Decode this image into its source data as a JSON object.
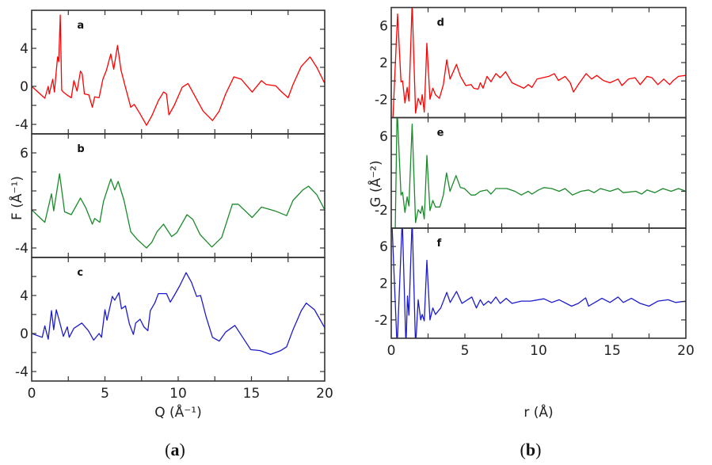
{
  "figure": {
    "left": {
      "ylabel": "F (Å⁻¹)",
      "xlabel": "Q (Å⁻¹)",
      "caption_open": "(",
      "caption_letter": "a",
      "caption_close": ")"
    },
    "right": {
      "ylabel": "G (Å⁻²)",
      "xlabel": "r (Å)",
      "caption_open": "(",
      "caption_letter": "b",
      "caption_close": ")"
    }
  },
  "chart_data": [
    {
      "type": "line",
      "panel": "a",
      "color": "#ff0000",
      "xlim": [
        0,
        20
      ],
      "ylim": [
        -5,
        8
      ],
      "yticklabels": [
        4,
        0,
        -4
      ],
      "xticks": [
        0,
        5,
        10,
        15,
        20
      ],
      "show_xticklabels": false,
      "points": [
        [
          0,
          0
        ],
        [
          0.9,
          -1.25
        ],
        [
          1.13,
          0
        ],
        [
          1.2,
          -0.8
        ],
        [
          1.44,
          0.75
        ],
        [
          1.55,
          -0.6
        ],
        [
          1.77,
          3.1
        ],
        [
          1.85,
          2.6
        ],
        [
          1.95,
          7.5
        ],
        [
          2.05,
          -0.4
        ],
        [
          2.16,
          -0.6
        ],
        [
          2.4,
          -0.9
        ],
        [
          2.7,
          -1.2
        ],
        [
          2.88,
          0.6
        ],
        [
          3.1,
          -0.5
        ],
        [
          3.33,
          1.6
        ],
        [
          3.45,
          1.3
        ],
        [
          3.6,
          -0.8
        ],
        [
          3.9,
          -0.9
        ],
        [
          4.14,
          -2.2
        ],
        [
          4.3,
          -1.1
        ],
        [
          4.6,
          -1.2
        ],
        [
          4.86,
          0.75
        ],
        [
          5.1,
          1.7
        ],
        [
          5.4,
          3.4
        ],
        [
          5.6,
          1.8
        ],
        [
          5.86,
          4.3
        ],
        [
          6.1,
          1.7
        ],
        [
          6.4,
          -0.1
        ],
        [
          6.76,
          -2.2
        ],
        [
          7.0,
          -1.9
        ],
        [
          7.4,
          -2.9
        ],
        [
          7.84,
          -4.1
        ],
        [
          8.2,
          -3.1
        ],
        [
          8.65,
          -1.5
        ],
        [
          9.0,
          -0.6
        ],
        [
          9.2,
          -0.8
        ],
        [
          9.37,
          -3.0
        ],
        [
          9.73,
          -2.0
        ],
        [
          10.27,
          -0.1
        ],
        [
          10.67,
          0.3
        ],
        [
          11.17,
          -1.1
        ],
        [
          11.7,
          -2.6
        ],
        [
          12.34,
          -3.6
        ],
        [
          12.8,
          -2.6
        ],
        [
          13.24,
          -0.8
        ],
        [
          13.8,
          1.0
        ],
        [
          14.3,
          0.75
        ],
        [
          15.05,
          -0.6
        ],
        [
          15.68,
          0.6
        ],
        [
          16.0,
          0.2
        ],
        [
          16.67,
          0.05
        ],
        [
          17.0,
          -0.5
        ],
        [
          17.5,
          -1.2
        ],
        [
          17.84,
          0.2
        ],
        [
          18.4,
          2.1
        ],
        [
          19.0,
          3.1
        ],
        [
          19.46,
          2.0
        ],
        [
          20,
          0.3
        ]
      ]
    },
    {
      "type": "line",
      "panel": "b",
      "color": "#1a8a2a",
      "xlim": [
        0,
        20
      ],
      "ylim": [
        -5,
        8
      ],
      "yticklabels": [
        6,
        -4
      ],
      "xticks": [
        0,
        5,
        10,
        15,
        20
      ],
      "show_xticklabels": false,
      "points": [
        [
          0,
          0
        ],
        [
          0.9,
          -1.3
        ],
        [
          1.35,
          1.7
        ],
        [
          1.5,
          -0.1
        ],
        [
          1.9,
          3.8
        ],
        [
          2.25,
          -0.2
        ],
        [
          2.7,
          -0.5
        ],
        [
          3.33,
          1.25
        ],
        [
          3.7,
          0.2
        ],
        [
          4.14,
          -1.5
        ],
        [
          4.3,
          -0.9
        ],
        [
          4.65,
          -1.3
        ],
        [
          4.9,
          0.9
        ],
        [
          5.4,
          3.25
        ],
        [
          5.67,
          2.1
        ],
        [
          5.9,
          3.0
        ],
        [
          6.3,
          1.0
        ],
        [
          6.76,
          -2.3
        ],
        [
          7.2,
          -3.1
        ],
        [
          7.84,
          -4.0
        ],
        [
          8.2,
          -3.4
        ],
        [
          8.55,
          -2.3
        ],
        [
          9.0,
          -1.5
        ],
        [
          9.55,
          -2.8
        ],
        [
          9.9,
          -2.4
        ],
        [
          10.6,
          -0.5
        ],
        [
          11.0,
          -1.0
        ],
        [
          11.5,
          -2.6
        ],
        [
          12.3,
          -3.9
        ],
        [
          12.97,
          -2.9
        ],
        [
          13.7,
          0.6
        ],
        [
          14.1,
          0.6
        ],
        [
          15.05,
          -0.8
        ],
        [
          15.68,
          0.3
        ],
        [
          16.6,
          -0.1
        ],
        [
          17.4,
          -0.6
        ],
        [
          17.84,
          1.0
        ],
        [
          18.5,
          2.1
        ],
        [
          18.9,
          2.5
        ],
        [
          19.46,
          1.6
        ],
        [
          20,
          0
        ]
      ]
    },
    {
      "type": "line",
      "panel": "c",
      "color": "#1c1ccc",
      "xlim": [
        0,
        20
      ],
      "ylim": [
        -5,
        8
      ],
      "yticklabels": [
        4,
        0,
        -4
      ],
      "xticks": [
        0,
        5,
        10,
        15,
        20
      ],
      "show_xticklabels": true,
      "points": [
        [
          0,
          0
        ],
        [
          0.72,
          -0.4
        ],
        [
          0.9,
          0.8
        ],
        [
          1.13,
          -0.6
        ],
        [
          1.35,
          2.4
        ],
        [
          1.5,
          0.4
        ],
        [
          1.68,
          2.5
        ],
        [
          1.9,
          1.25
        ],
        [
          2.16,
          -0.3
        ],
        [
          2.43,
          0.7
        ],
        [
          2.56,
          -0.4
        ],
        [
          2.88,
          0.55
        ],
        [
          3.42,
          1.1
        ],
        [
          3.87,
          0.3
        ],
        [
          4.23,
          -0.7
        ],
        [
          4.6,
          0
        ],
        [
          4.77,
          -0.4
        ],
        [
          5.0,
          2.5
        ],
        [
          5.14,
          1.4
        ],
        [
          5.5,
          3.9
        ],
        [
          5.67,
          3.5
        ],
        [
          5.95,
          4.3
        ],
        [
          6.13,
          2.6
        ],
        [
          6.4,
          2.9
        ],
        [
          6.67,
          1.0
        ],
        [
          6.94,
          -0.1
        ],
        [
          7.1,
          1.1
        ],
        [
          7.4,
          1.5
        ],
        [
          7.66,
          0.7
        ],
        [
          7.93,
          0.3
        ],
        [
          8.1,
          2.4
        ],
        [
          8.4,
          3.2
        ],
        [
          8.65,
          4.2
        ],
        [
          9.2,
          4.2
        ],
        [
          9.46,
          3.3
        ],
        [
          9.73,
          4.0
        ],
        [
          10.1,
          5.0
        ],
        [
          10.54,
          6.4
        ],
        [
          10.9,
          5.4
        ],
        [
          11.26,
          3.9
        ],
        [
          11.53,
          4.0
        ],
        [
          11.9,
          1.8
        ],
        [
          12.34,
          -0.4
        ],
        [
          12.8,
          -0.8
        ],
        [
          13.24,
          0.15
        ],
        [
          13.87,
          0.85
        ],
        [
          14.4,
          -0.4
        ],
        [
          14.95,
          -1.7
        ],
        [
          15.6,
          -1.8
        ],
        [
          16.3,
          -2.2
        ],
        [
          17.0,
          -1.8
        ],
        [
          17.4,
          -1.4
        ],
        [
          17.84,
          0.4
        ],
        [
          18.4,
          2.4
        ],
        [
          18.74,
          3.2
        ],
        [
          19.3,
          2.5
        ],
        [
          20,
          0.6
        ]
      ]
    },
    {
      "type": "line",
      "panel": "d",
      "color": "#ff0000",
      "xlim": [
        0,
        20
      ],
      "ylim": [
        -4,
        8
      ],
      "yticklabels": [
        6,
        2,
        -2
      ],
      "xticks": [
        0,
        5,
        10,
        15,
        20
      ],
      "show_xticklabels": false,
      "points": [
        [
          0.1,
          -4.5
        ],
        [
          0.43,
          7.3
        ],
        [
          0.66,
          -0.1
        ],
        [
          0.77,
          0
        ],
        [
          0.93,
          -2.4
        ],
        [
          1.08,
          -0.7
        ],
        [
          1.2,
          -2.2
        ],
        [
          1.42,
          8.5
        ],
        [
          1.65,
          -3.5
        ],
        [
          1.83,
          -1.9
        ],
        [
          2.0,
          -2.6
        ],
        [
          2.1,
          -1.5
        ],
        [
          2.24,
          -3.4
        ],
        [
          2.42,
          4.1
        ],
        [
          2.63,
          -2.0
        ],
        [
          2.82,
          -0.8
        ],
        [
          3.0,
          -1.5
        ],
        [
          3.27,
          -1.9
        ],
        [
          3.54,
          -0.4
        ],
        [
          3.77,
          2.3
        ],
        [
          3.99,
          0.2
        ],
        [
          4.43,
          1.8
        ],
        [
          4.7,
          0.5
        ],
        [
          5.06,
          -0.5
        ],
        [
          5.42,
          -0.4
        ],
        [
          5.6,
          -0.8
        ],
        [
          5.9,
          -0.9
        ],
        [
          6.05,
          -0.2
        ],
        [
          6.23,
          -0.8
        ],
        [
          6.5,
          0.5
        ],
        [
          6.77,
          -0.1
        ],
        [
          7.1,
          0.8
        ],
        [
          7.4,
          0.35
        ],
        [
          7.76,
          1.0
        ],
        [
          8.2,
          -0.2
        ],
        [
          9.0,
          -0.8
        ],
        [
          9.3,
          -0.4
        ],
        [
          9.55,
          -0.7
        ],
        [
          9.9,
          0.2
        ],
        [
          10.7,
          0.5
        ],
        [
          11.07,
          0.8
        ],
        [
          11.35,
          0.05
        ],
        [
          11.8,
          0.5
        ],
        [
          12.15,
          -0.2
        ],
        [
          12.37,
          -1.2
        ],
        [
          12.7,
          -0.4
        ],
        [
          13.23,
          0.8
        ],
        [
          13.6,
          0.2
        ],
        [
          13.95,
          0.6
        ],
        [
          14.4,
          0.05
        ],
        [
          14.85,
          -0.2
        ],
        [
          15.4,
          0.2
        ],
        [
          15.66,
          -0.5
        ],
        [
          16.1,
          0.2
        ],
        [
          16.55,
          0.35
        ],
        [
          16.9,
          -0.4
        ],
        [
          17.36,
          0.5
        ],
        [
          17.7,
          0.35
        ],
        [
          18.1,
          -0.4
        ],
        [
          18.5,
          0.2
        ],
        [
          18.9,
          -0.4
        ],
        [
          19.15,
          0.05
        ],
        [
          19.5,
          0.5
        ],
        [
          20,
          0.6
        ]
      ]
    },
    {
      "type": "line",
      "panel": "e",
      "color": "#1a8a2a",
      "xlim": [
        0,
        20
      ],
      "ylim": [
        -4,
        8
      ],
      "yticklabels": [
        6,
        -2
      ],
      "xticks": [
        0,
        5,
        10,
        15,
        20
      ],
      "show_xticklabels": false,
      "points": [
        [
          0.27,
          -4.5
        ],
        [
          0.4,
          9
        ],
        [
          0.66,
          -0.4
        ],
        [
          0.77,
          -0.1
        ],
        [
          0.93,
          -2.3
        ],
        [
          1.08,
          -0.6
        ],
        [
          1.2,
          -1.6
        ],
        [
          1.42,
          7.3
        ],
        [
          1.65,
          -3.4
        ],
        [
          1.83,
          -2.0
        ],
        [
          2.0,
          -2.4
        ],
        [
          2.1,
          -1.6
        ],
        [
          2.24,
          -3.0
        ],
        [
          2.42,
          3.9
        ],
        [
          2.63,
          -2.1
        ],
        [
          2.82,
          -1.0
        ],
        [
          3.0,
          -1.7
        ],
        [
          3.3,
          -1.7
        ],
        [
          3.54,
          -0.4
        ],
        [
          3.75,
          2.0
        ],
        [
          3.99,
          0
        ],
        [
          4.4,
          1.7
        ],
        [
          4.7,
          0.4
        ],
        [
          4.97,
          0.3
        ],
        [
          5.42,
          -0.4
        ],
        [
          5.7,
          -0.4
        ],
        [
          6.05,
          0
        ],
        [
          6.5,
          0.15
        ],
        [
          6.77,
          -0.3
        ],
        [
          7.1,
          0.3
        ],
        [
          7.85,
          0.3
        ],
        [
          8.4,
          0
        ],
        [
          8.83,
          -0.4
        ],
        [
          9.3,
          0
        ],
        [
          9.55,
          -0.3
        ],
        [
          10.0,
          0.15
        ],
        [
          10.36,
          0.4
        ],
        [
          10.9,
          0.3
        ],
        [
          11.4,
          0
        ],
        [
          11.8,
          0.3
        ],
        [
          12.3,
          -0.4
        ],
        [
          12.87,
          0
        ],
        [
          13.4,
          0.15
        ],
        [
          13.77,
          -0.15
        ],
        [
          14.2,
          0.3
        ],
        [
          14.85,
          0
        ],
        [
          15.4,
          0.3
        ],
        [
          15.75,
          -0.15
        ],
        [
          16.6,
          0
        ],
        [
          17.0,
          -0.3
        ],
        [
          17.36,
          0.15
        ],
        [
          17.9,
          -0.15
        ],
        [
          18.44,
          0.3
        ],
        [
          19.0,
          0
        ],
        [
          19.5,
          0.3
        ],
        [
          20,
          0
        ]
      ]
    },
    {
      "type": "line",
      "panel": "f",
      "color": "#1c1ccc",
      "xlim": [
        0,
        20
      ],
      "ylim": [
        -4,
        8
      ],
      "yticklabels": [
        6,
        2,
        -2
      ],
      "xticks": [
        0,
        5,
        10,
        15,
        20
      ],
      "show_xticklabels": true,
      "points": [
        [
          0.04,
          9
        ],
        [
          0.4,
          -5
        ],
        [
          0.75,
          9
        ],
        [
          1.0,
          -5
        ],
        [
          1.1,
          0.6
        ],
        [
          1.2,
          -1.5
        ],
        [
          1.42,
          9
        ],
        [
          1.65,
          -5
        ],
        [
          1.83,
          0.2
        ],
        [
          2.0,
          -2.0
        ],
        [
          2.1,
          -1.4
        ],
        [
          2.24,
          -2.1
        ],
        [
          2.42,
          4.5
        ],
        [
          2.63,
          -2.0
        ],
        [
          2.82,
          -0.7
        ],
        [
          3.0,
          -1.4
        ],
        [
          3.36,
          -0.7
        ],
        [
          3.77,
          1.0
        ],
        [
          4.0,
          -0.1
        ],
        [
          4.43,
          1.1
        ],
        [
          4.8,
          -0.2
        ],
        [
          5.47,
          0.5
        ],
        [
          5.78,
          -0.7
        ],
        [
          6.05,
          0.2
        ],
        [
          6.27,
          -0.4
        ],
        [
          6.6,
          0.05
        ],
        [
          6.77,
          -0.2
        ],
        [
          7.1,
          0.5
        ],
        [
          7.4,
          -0.2
        ],
        [
          7.8,
          0.35
        ],
        [
          8.2,
          -0.2
        ],
        [
          8.83,
          0.05
        ],
        [
          9.46,
          0.05
        ],
        [
          10.36,
          0.3
        ],
        [
          10.9,
          -0.1
        ],
        [
          11.4,
          0.2
        ],
        [
          12.24,
          -0.5
        ],
        [
          12.7,
          -0.2
        ],
        [
          13.2,
          0.4
        ],
        [
          13.4,
          -0.5
        ],
        [
          14.3,
          0.35
        ],
        [
          14.85,
          -0.1
        ],
        [
          15.4,
          0.5
        ],
        [
          15.75,
          -0.1
        ],
        [
          16.3,
          0.35
        ],
        [
          16.9,
          -0.2
        ],
        [
          17.5,
          -0.5
        ],
        [
          18.1,
          0.05
        ],
        [
          18.8,
          0.2
        ],
        [
          19.3,
          -0.1
        ],
        [
          20,
          0.05
        ]
      ]
    }
  ]
}
